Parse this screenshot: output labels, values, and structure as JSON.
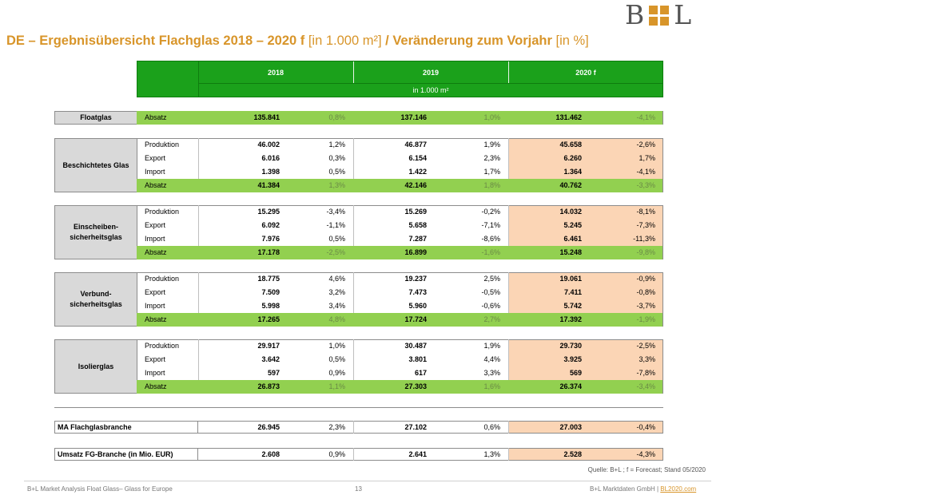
{
  "logo": {
    "left": "B",
    "right": "L",
    "accent": "#d8952a"
  },
  "title": {
    "main": "DE – Ergebnisübersicht Flachglas 2018 – 2020 f",
    "unit": "[in 1.000 m²]",
    "sep": " / ",
    "change": "Veränderung zum Vorjahr",
    "change_unit": "[in %]"
  },
  "header": {
    "years": [
      "2018",
      "2019",
      "2020 f"
    ],
    "unit": "in 1.000 m²"
  },
  "floatglas": {
    "category": "Floatglas",
    "label": "Absatz",
    "v2018": "135.841",
    "p2018": "0,8%",
    "v2019": "137.146",
    "p2019": "1,0%",
    "v2020": "131.462",
    "p2020": "-4,1%"
  },
  "groups": [
    {
      "category": "Beschichtetes Glas",
      "rows": [
        {
          "label": "Produktion",
          "v2018": "46.002",
          "p2018": "1,2%",
          "v2019": "46.877",
          "p2019": "1,9%",
          "v2020": "45.658",
          "p2020": "-2,6%"
        },
        {
          "label": "Export",
          "v2018": "6.016",
          "p2018": "0,3%",
          "v2019": "6.154",
          "p2019": "2,3%",
          "v2020": "6.260",
          "p2020": "1,7%"
        },
        {
          "label": "Import",
          "v2018": "1.398",
          "p2018": "0,5%",
          "v2019": "1.422",
          "p2019": "1,7%",
          "v2020": "1.364",
          "p2020": "-4,1%"
        },
        {
          "label": "Absatz",
          "v2018": "41.384",
          "p2018": "1,3%",
          "v2019": "42.146",
          "p2019": "1,8%",
          "v2020": "40.762",
          "p2020": "-3,3%"
        }
      ]
    },
    {
      "category": "Einscheiben-\nsicherheitsglas",
      "rows": [
        {
          "label": "Produktion",
          "v2018": "15.295",
          "p2018": "-3,4%",
          "v2019": "15.269",
          "p2019": "-0,2%",
          "v2020": "14.032",
          "p2020": "-8,1%"
        },
        {
          "label": "Export",
          "v2018": "6.092",
          "p2018": "-1,1%",
          "v2019": "5.658",
          "p2019": "-7,1%",
          "v2020": "5.245",
          "p2020": "-7,3%"
        },
        {
          "label": "Import",
          "v2018": "7.976",
          "p2018": "0,5%",
          "v2019": "7.287",
          "p2019": "-8,6%",
          "v2020": "6.461",
          "p2020": "-11,3%"
        },
        {
          "label": "Absatz",
          "v2018": "17.178",
          "p2018": "-2,5%",
          "v2019": "16.899",
          "p2019": "-1,6%",
          "v2020": "15.248",
          "p2020": "-9,8%"
        }
      ]
    },
    {
      "category": "Verbund-\nsicherheitsglas",
      "rows": [
        {
          "label": "Produktion",
          "v2018": "18.775",
          "p2018": "4,6%",
          "v2019": "19.237",
          "p2019": "2,5%",
          "v2020": "19.061",
          "p2020": "-0,9%"
        },
        {
          "label": "Export",
          "v2018": "7.509",
          "p2018": "3,2%",
          "v2019": "7.473",
          "p2019": "-0,5%",
          "v2020": "7.411",
          "p2020": "-0,8%"
        },
        {
          "label": "Import",
          "v2018": "5.998",
          "p2018": "3,4%",
          "v2019": "5.960",
          "p2019": "-0,6%",
          "v2020": "5.742",
          "p2020": "-3,7%"
        },
        {
          "label": "Absatz",
          "v2018": "17.265",
          "p2018": "4,8%",
          "v2019": "17.724",
          "p2019": "2,7%",
          "v2020": "17.392",
          "p2020": "-1,9%"
        }
      ]
    },
    {
      "category": "Isolierglas",
      "rows": [
        {
          "label": "Produktion",
          "v2018": "29.917",
          "p2018": "1,0%",
          "v2019": "30.487",
          "p2019": "1,9%",
          "v2020": "29.730",
          "p2020": "-2,5%"
        },
        {
          "label": "Export",
          "v2018": "3.642",
          "p2018": "0,5%",
          "v2019": "3.801",
          "p2019": "4,4%",
          "v2020": "3.925",
          "p2020": "3,3%"
        },
        {
          "label": "Import",
          "v2018": "597",
          "p2018": "0,9%",
          "v2019": "617",
          "p2019": "3,3%",
          "v2020": "569",
          "p2020": "-7,8%"
        },
        {
          "label": "Absatz",
          "v2018": "26.873",
          "p2018": "1,1%",
          "v2019": "27.303",
          "p2019": "1,6%",
          "v2020": "26.374",
          "p2020": "-3,4%"
        }
      ]
    }
  ],
  "ma": {
    "label": "MA Flachglasbranche",
    "v2018": "26.945",
    "p2018": "2,3%",
    "v2019": "27.102",
    "p2019": "0,6%",
    "v2020": "27.003",
    "p2020": "-0,4%"
  },
  "umsatz": {
    "label": "Umsatz FG-Branche (in Mio. EUR)",
    "v2018": "2.608",
    "p2018": "0,9%",
    "v2019": "2.641",
    "p2019": "1,3%",
    "v2020": "2.528",
    "p2020": "-4,3%"
  },
  "source": "Quelle: B+L ; f = Forecast; Stand 05/2020",
  "footer": {
    "left": "B+L Market Analysis Float Glass– Glass for Europe",
    "page": "13",
    "right_prefix": "B+L Marktdaten GmbH | ",
    "right_link": "BL2020.com"
  },
  "colors": {
    "green_header": "#1ba11b",
    "green_row": "#92d050",
    "forecast": "#fbd5b5",
    "category_bg": "#d9d9d9",
    "title": "#d8952a"
  }
}
